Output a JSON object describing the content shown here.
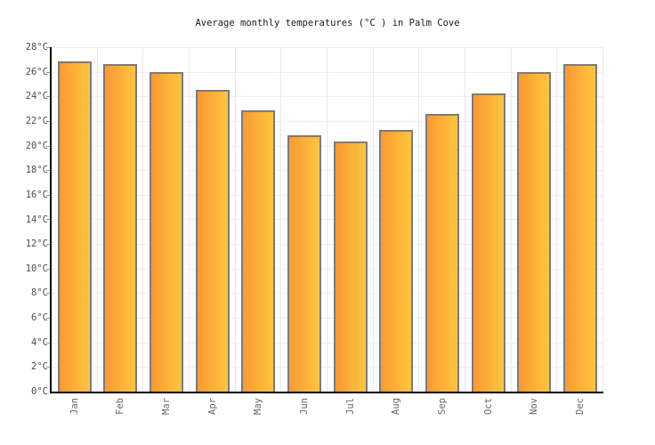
{
  "chart_data": {
    "type": "bar",
    "title": "Average monthly temperatures (°C ) in Palm Cove",
    "categories": [
      "Jan",
      "Feb",
      "Mar",
      "Apr",
      "May",
      "Jun",
      "Jul",
      "Aug",
      "Sep",
      "Oct",
      "Nov",
      "Dec"
    ],
    "values": [
      26.7,
      26.5,
      25.8,
      24.4,
      22.7,
      20.7,
      20.2,
      21.1,
      22.4,
      24.1,
      25.8,
      26.5
    ],
    "unit": "°C",
    "xlabel": "",
    "ylabel": "",
    "ylim": [
      0,
      28
    ],
    "ytick_step": 2,
    "ytick_labels": [
      "0°C",
      "2°C",
      "4°C",
      "6°C",
      "8°C",
      "10°C",
      "12°C",
      "14°C",
      "16°C",
      "18°C",
      "20°C",
      "22°C",
      "24°C",
      "26°C",
      "28°C"
    ],
    "grid": "on",
    "legend": "none",
    "x_label_rotation": -90
  },
  "colors": {
    "bar_gradient_left": "#FA9933",
    "bar_gradient_right": "#FFC53E",
    "bar_border": "#7A7A84",
    "grid_horizontal": "#EFEFEF",
    "grid_vertical": "#E8E8EE",
    "axis": "#000000",
    "tick": "#9A9AA2",
    "title_text": "#1A1A1A",
    "axis_label_text": "#4D4D4D",
    "month_label_text": "#666666",
    "background": "#FFFFFF"
  }
}
